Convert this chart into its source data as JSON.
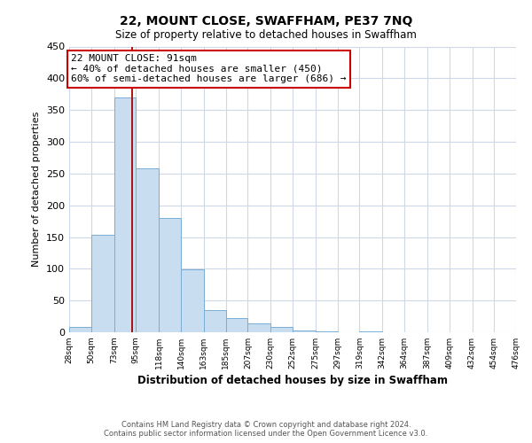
{
  "title": "22, MOUNT CLOSE, SWAFFHAM, PE37 7NQ",
  "subtitle": "Size of property relative to detached houses in Swaffham",
  "xlabel": "Distribution of detached houses by size in Swaffham",
  "ylabel": "Number of detached properties",
  "bin_edges": [
    28,
    50,
    73,
    95,
    118,
    140,
    163,
    185,
    207,
    230,
    252,
    275,
    297,
    319,
    342,
    364,
    387,
    409,
    432,
    454,
    476
  ],
  "bin_labels": [
    "28sqm",
    "50sqm",
    "73sqm",
    "95sqm",
    "118sqm",
    "140sqm",
    "163sqm",
    "185sqm",
    "207sqm",
    "230sqm",
    "252sqm",
    "275sqm",
    "297sqm",
    "319sqm",
    "342sqm",
    "364sqm",
    "387sqm",
    "409sqm",
    "432sqm",
    "454sqm",
    "476sqm"
  ],
  "bar_heights": [
    8,
    153,
    370,
    258,
    180,
    99,
    35,
    22,
    14,
    8,
    3,
    1,
    0,
    2,
    0,
    0,
    0,
    0,
    0,
    0
  ],
  "bar_color": "#c8ddf0",
  "bar_edge_color": "#7aadd4",
  "property_line_x": 91,
  "annotation_title": "22 MOUNT CLOSE: 91sqm",
  "annotation_line1": "← 40% of detached houses are smaller (450)",
  "annotation_line2": "60% of semi-detached houses are larger (686) →",
  "annotation_box_color": "#ffffff",
  "annotation_box_edge": "#cc0000",
  "line_color": "#aa0000",
  "ylim": [
    0,
    450
  ],
  "yticks": [
    0,
    50,
    100,
    150,
    200,
    250,
    300,
    350,
    400,
    450
  ],
  "footer_line1": "Contains HM Land Registry data © Crown copyright and database right 2024.",
  "footer_line2": "Contains public sector information licensed under the Open Government Licence v3.0.",
  "background_color": "#ffffff",
  "grid_color": "#d0d8e8"
}
